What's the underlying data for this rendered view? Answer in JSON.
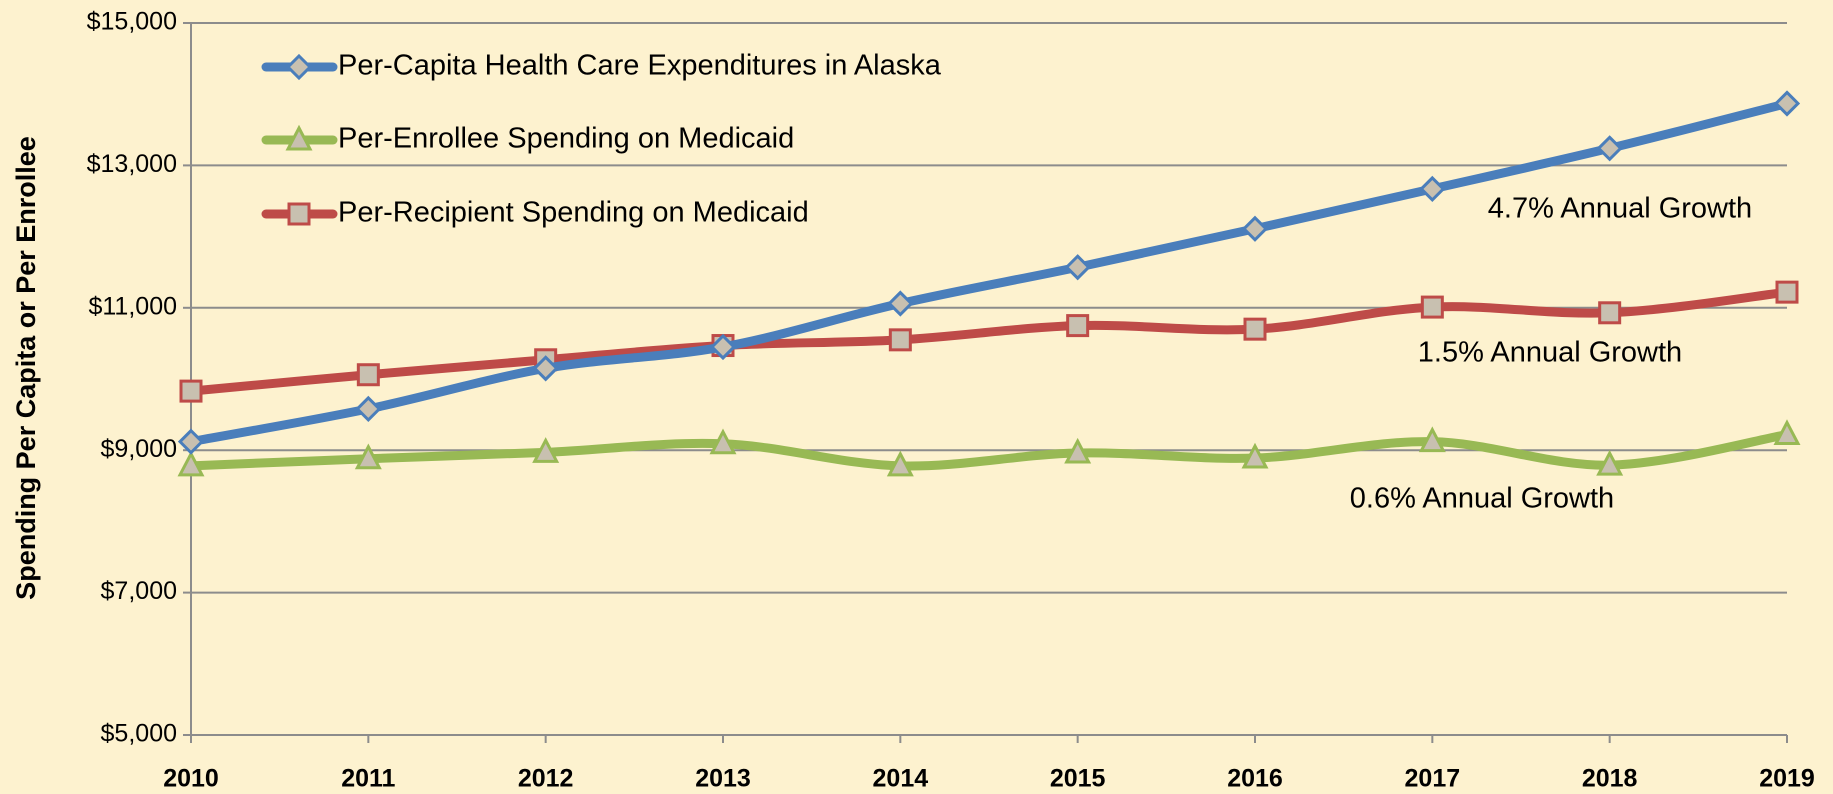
{
  "chart_data": {
    "type": "line",
    "y_label": "Spending Per Capita or Per Enrollee",
    "categories": [
      "2010",
      "2011",
      "2012",
      "2013",
      "2014",
      "2015",
      "2016",
      "2017",
      "2018",
      "2019"
    ],
    "series": [
      {
        "name": "Per-Capita Health Care Expenditures in Alaska",
        "color": "#4a7ebb",
        "marker": "diamond",
        "values": [
          9120,
          9580,
          10150,
          10450,
          11060,
          11570,
          12110,
          12670,
          13240,
          13870
        ]
      },
      {
        "name": "Per-Enrollee Spending on Medicaid",
        "color": "#98b954",
        "marker": "triangle",
        "values": [
          8780,
          8880,
          8970,
          9090,
          8780,
          8960,
          8890,
          9120,
          8790,
          9220
        ]
      },
      {
        "name": "Per-Recipient Spending on Medicaid",
        "color": "#be4b48",
        "marker": "square",
        "values": [
          9830,
          10060,
          10270,
          10470,
          10550,
          10750,
          10700,
          11010,
          10930,
          11220
        ]
      }
    ],
    "annotations": [
      "4.7% Annual Growth",
      "1.5% Annual Growth",
      "0.6% Annual Growth"
    ],
    "ylim": [
      5000,
      15000
    ],
    "yticks": [
      {
        "value": 5000,
        "label": "$5,000"
      },
      {
        "value": 7000,
        "label": "$7,000"
      },
      {
        "value": 9000,
        "label": "$9,000"
      },
      {
        "value": 11000,
        "label": "$11,000"
      },
      {
        "value": 13000,
        "label": "$13,000"
      },
      {
        "value": 15000,
        "label": "$15,000"
      }
    ],
    "grid": true,
    "legend": "top-left"
  }
}
